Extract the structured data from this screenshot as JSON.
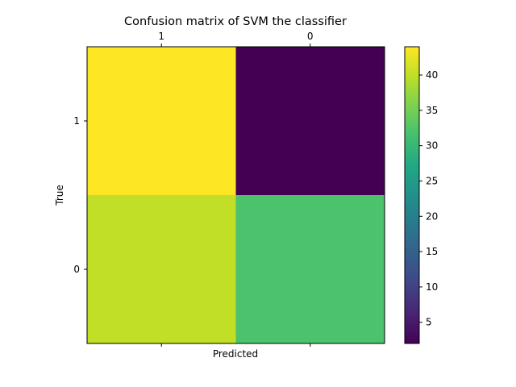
{
  "chart_data": {
    "type": "heatmap",
    "title": "Confusion matrix of SVM the classifier",
    "xlabel": "Predicted",
    "ylabel": "True",
    "x_categories": [
      "1",
      "0"
    ],
    "y_categories": [
      "1",
      "0"
    ],
    "values": [
      [
        44,
        2
      ],
      [
        40,
        32
      ]
    ],
    "colorbar": {
      "min": 2,
      "max": 44,
      "ticks": [
        5,
        10,
        15,
        20,
        25,
        30,
        35,
        40
      ],
      "colormap": "viridis"
    },
    "x_axis_position": "top"
  }
}
